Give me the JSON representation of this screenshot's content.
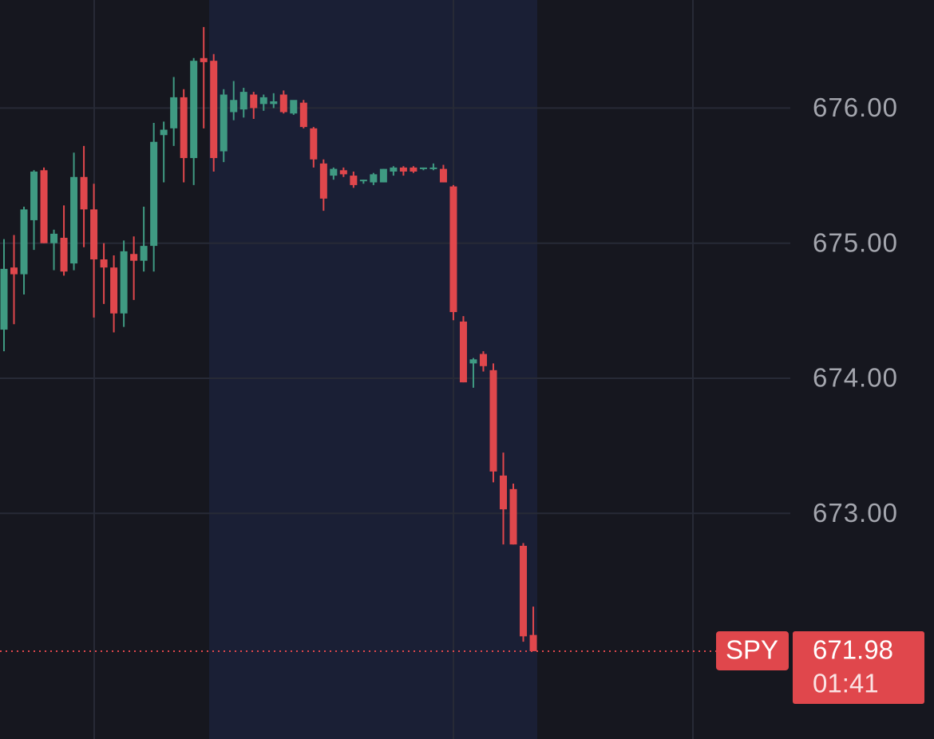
{
  "chart_data": {
    "type": "candlestick",
    "symbol": "SPY",
    "last_price": 671.98,
    "countdown": "01:41",
    "up_color": "#3f9a82",
    "down_color": "#e0474c",
    "ylim": [
      671.33,
      676.8
    ],
    "yticks": [
      {
        "value": 673,
        "label": "673.00"
      },
      {
        "value": 674,
        "label": "674.00"
      },
      {
        "value": 675,
        "label": "675.00"
      },
      {
        "value": 676,
        "label": "676.00"
      }
    ],
    "grid": true,
    "categories": [
      null,
      null,
      null,
      null,
      null,
      null,
      null,
      null,
      null,
      null,
      null,
      null,
      null,
      null,
      null,
      null,
      null,
      null,
      null,
      null,
      null,
      null,
      null,
      null,
      null,
      null,
      null,
      null,
      null,
      null,
      null,
      null,
      null,
      null,
      null,
      null,
      null,
      null,
      null,
      null,
      null,
      null,
      null,
      null,
      null,
      null,
      null,
      null,
      null,
      null,
      null,
      null,
      null,
      null
    ],
    "open": [
      674.36,
      674.82,
      674.77,
      675.17,
      675.54,
      675.0,
      675.04,
      674.85,
      675.49,
      675.25,
      674.88,
      674.82,
      674.48,
      674.92,
      674.87,
      674.98,
      675.8,
      675.85,
      676.08,
      675.63,
      676.37,
      676.35,
      675.68,
      675.97,
      675.99,
      676.1,
      676.03,
      676.03,
      676.1,
      675.96,
      676.04,
      675.85,
      675.59,
      675.5,
      675.54,
      675.5,
      675.46,
      675.45,
      675.45,
      675.53,
      675.56,
      675.56,
      675.55,
      675.55,
      675.55,
      675.42,
      674.42,
      674.11,
      674.18,
      674.06,
      673.28,
      673.18,
      672.76,
      672.1
    ],
    "high": [
      675.03,
      675.06,
      675.27,
      675.54,
      675.56,
      675.1,
      675.28,
      675.67,
      675.72,
      675.44,
      675.0,
      674.91,
      675.02,
      675.05,
      675.27,
      675.89,
      675.9,
      676.23,
      676.14,
      676.37,
      676.6,
      676.4,
      676.14,
      676.2,
      676.15,
      676.12,
      676.1,
      676.11,
      676.13,
      676.05,
      676.06,
      675.86,
      675.62,
      675.56,
      675.56,
      675.53,
      675.47,
      675.52,
      675.55,
      675.57,
      675.57,
      675.57,
      675.56,
      675.59,
      675.58,
      675.43,
      674.46,
      674.15,
      674.2,
      674.11,
      673.45,
      673.22,
      672.78,
      672.31
    ],
    "low": [
      674.2,
      674.4,
      674.62,
      674.95,
      675.0,
      674.8,
      674.76,
      674.8,
      674.97,
      674.45,
      674.55,
      674.34,
      674.38,
      674.58,
      674.79,
      674.79,
      675.45,
      675.72,
      675.45,
      675.43,
      675.85,
      675.53,
      675.6,
      675.91,
      675.93,
      675.92,
      675.98,
      676.0,
      675.96,
      675.95,
      675.85,
      675.56,
      675.24,
      675.47,
      675.49,
      675.41,
      675.44,
      675.43,
      675.45,
      675.5,
      675.5,
      675.52,
      675.54,
      675.54,
      675.45,
      674.43,
      673.97,
      673.93,
      674.05,
      673.23,
      672.77,
      672.77,
      672.05,
      671.98
    ],
    "close": [
      674.81,
      674.77,
      675.25,
      675.53,
      675.0,
      675.07,
      674.79,
      675.49,
      675.25,
      674.88,
      674.82,
      674.48,
      674.94,
      674.87,
      674.98,
      675.75,
      675.84,
      676.08,
      675.63,
      676.35,
      676.34,
      675.63,
      676.1,
      676.06,
      676.12,
      676.0,
      676.08,
      676.05,
      675.97,
      676.06,
      675.86,
      675.62,
      675.33,
      675.55,
      675.51,
      675.43,
      675.47,
      675.51,
      675.55,
      675.56,
      675.53,
      675.53,
      675.56,
      675.56,
      675.45,
      674.49,
      673.97,
      674.14,
      674.09,
      673.31,
      673.03,
      672.77,
      672.09,
      671.98
    ]
  }
}
